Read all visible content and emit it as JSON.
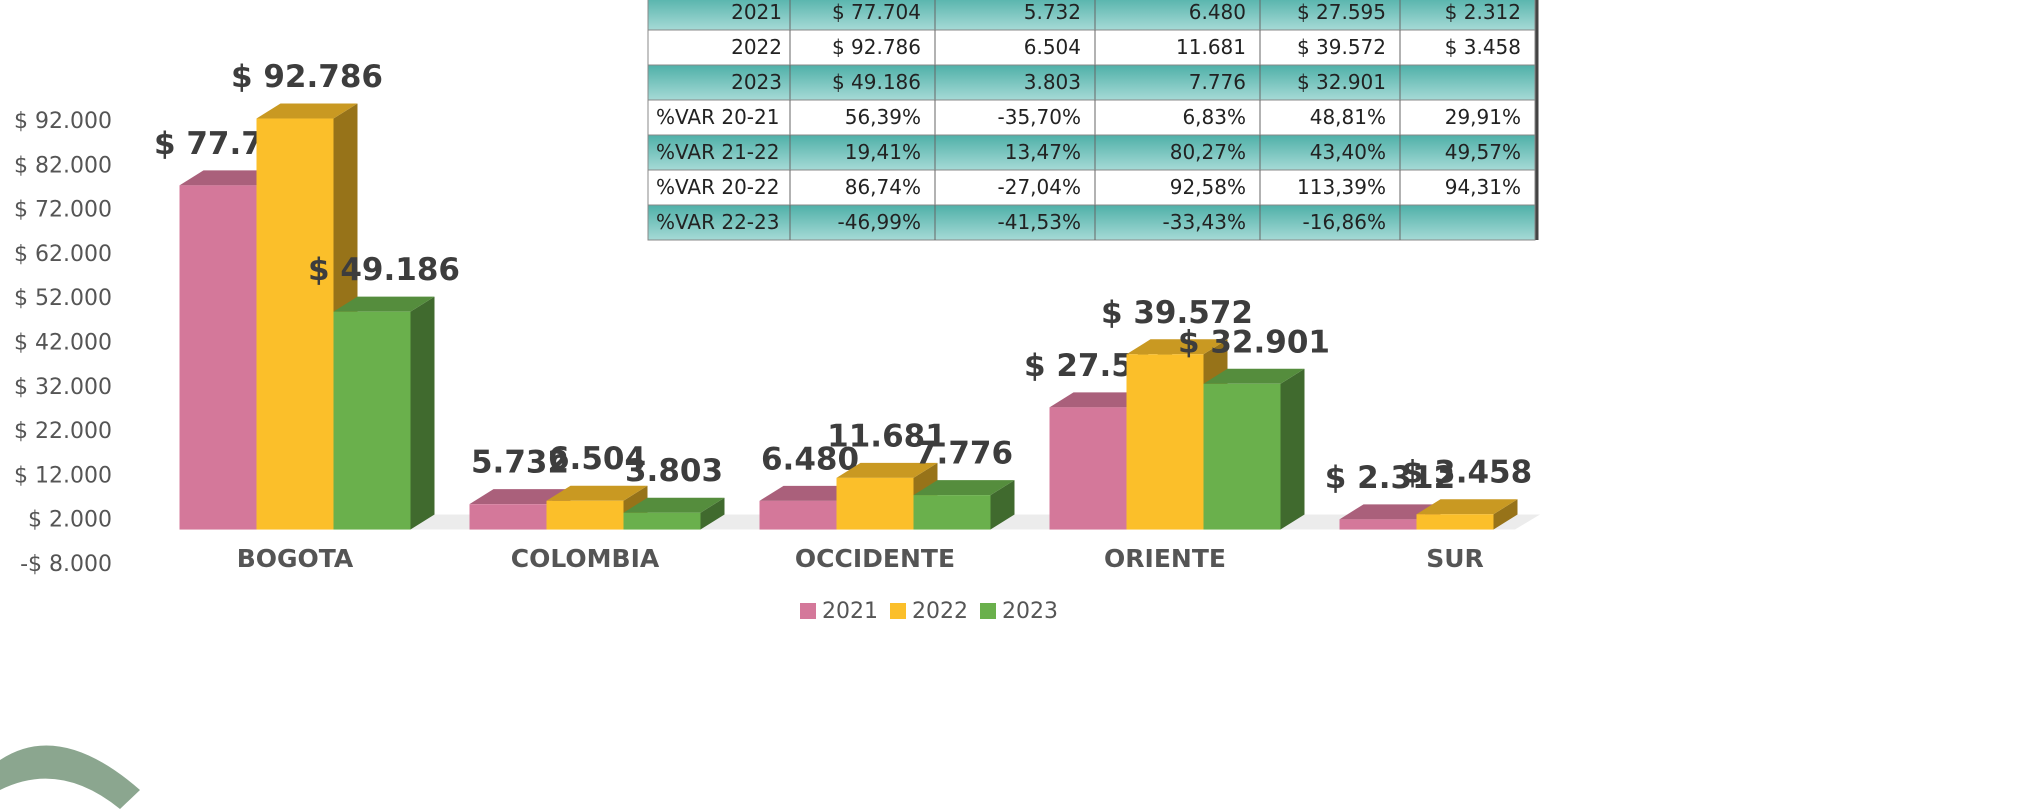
{
  "chart_data": {
    "type": "bar3d",
    "categories": [
      "BOGOTA",
      "COLOMBIA",
      "OCCIDENTE",
      "ORIENTE",
      "SUR"
    ],
    "series": [
      {
        "name": "2021",
        "color": "#d4789a",
        "values": [
          77704,
          5732,
          6480,
          27595,
          2312
        ],
        "value_labels": [
          "$ 77.704",
          "5.732",
          "6.480",
          "$ 27.595",
          "$ 2.312"
        ]
      },
      {
        "name": "2022",
        "color": "#fbbf2a",
        "values": [
          92786,
          6504,
          11681,
          39572,
          3458
        ],
        "value_labels": [
          "$ 92.786",
          "6.504",
          "11.681",
          "$ 39.572",
          "$ 3.458"
        ]
      },
      {
        "name": "2023",
        "color": "#6ab04c",
        "values": [
          49186,
          3803,
          7776,
          32901,
          null
        ],
        "value_labels": [
          "$ 49.186",
          "3.803",
          "7.776",
          "$ 32.901",
          null
        ]
      }
    ],
    "ylim": [
      -8000,
      92000
    ],
    "yticks": [
      {
        "value": -8000,
        "label": "-$ 8.000"
      },
      {
        "value": 2000,
        "label": "$ 2.000"
      },
      {
        "value": 12000,
        "label": "$ 12.000"
      },
      {
        "value": 22000,
        "label": "$ 22.000"
      },
      {
        "value": 32000,
        "label": "$ 32.000"
      },
      {
        "value": 42000,
        "label": "$ 42.000"
      },
      {
        "value": 52000,
        "label": "$ 52.000"
      },
      {
        "value": 62000,
        "label": "$ 62.000"
      },
      {
        "value": 72000,
        "label": "$ 72.000"
      },
      {
        "value": 82000,
        "label": "$ 82.000"
      },
      {
        "value": 92000,
        "label": "$ 92.000"
      }
    ],
    "grid": false,
    "legend": "bottom"
  },
  "table": {
    "rows": [
      [
        "2021",
        "$ 77.704",
        "5.732",
        "6.480",
        "$ 27.595",
        "$ 2.312"
      ],
      [
        "2022",
        "$ 92.786",
        "6.504",
        "11.681",
        "$ 39.572",
        "$ 3.458"
      ],
      [
        "2023",
        "$ 49.186",
        "3.803",
        "7.776",
        "$ 32.901",
        null
      ],
      [
        "%VAR 20-21",
        "56,39%",
        "-35,70%",
        "6,83%",
        "48,81%",
        "29,91%"
      ],
      [
        "%VAR 21-22",
        "19,41%",
        "13,47%",
        "80,27%",
        "43,40%",
        "49,57%"
      ],
      [
        "%VAR 20-22",
        "86,74%",
        "-27,04%",
        "92,58%",
        "113,39%",
        "94,31%"
      ],
      [
        "%VAR 22-23",
        "-46,99%",
        "-41,53%",
        "-33,43%",
        "-16,86%",
        null
      ]
    ]
  }
}
